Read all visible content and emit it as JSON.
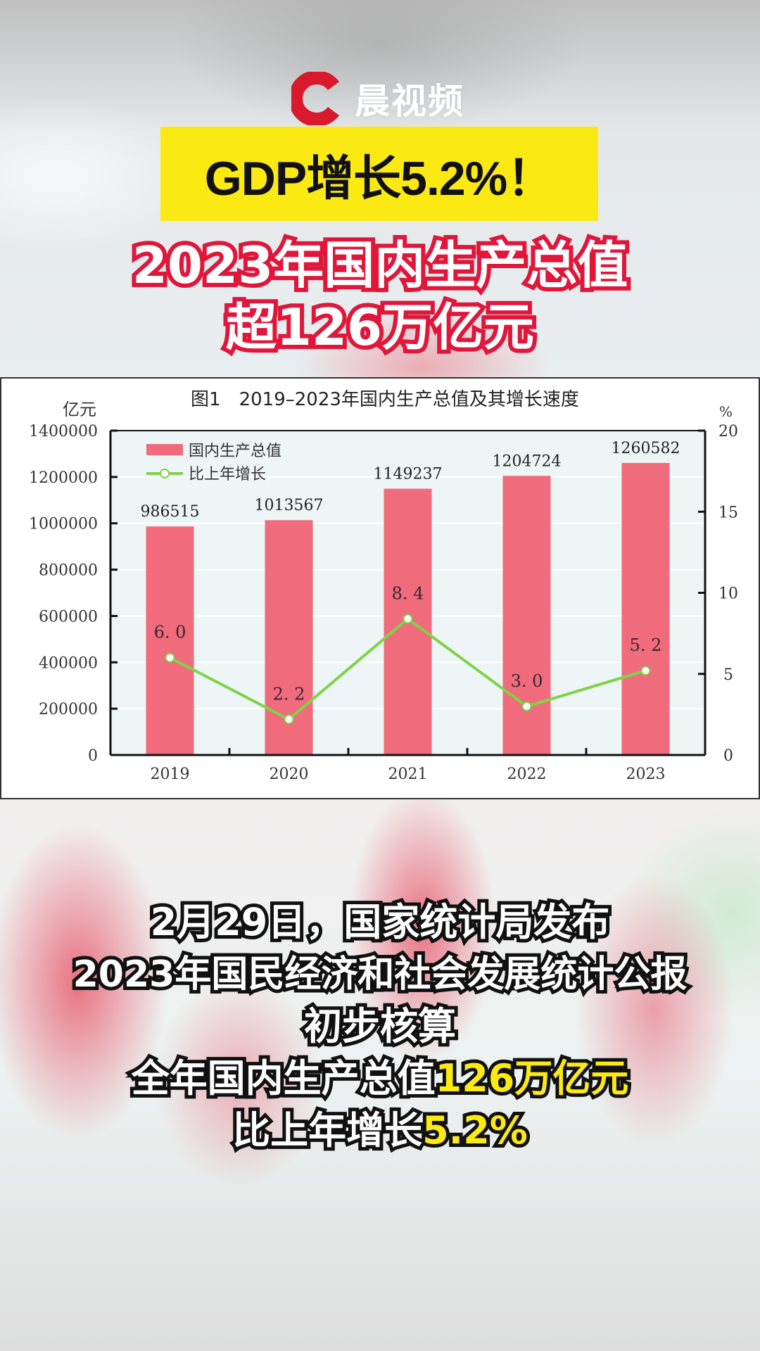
{
  "brand": {
    "logo_text": "晨视频",
    "logo_color": "#d9192c"
  },
  "headline": {
    "text": "GDP增长5.2%！",
    "bg_color": "#fbe914"
  },
  "sub_headline": {
    "line1": "2023年国内生产总值",
    "line2": "超126万亿元",
    "stroke_color": "#e0163a"
  },
  "chart_data": {
    "type": "bar+line",
    "title": "图1　2019–2023年国内生产总值及其增长速度",
    "categories": [
      "2019",
      "2020",
      "2021",
      "2022",
      "2023"
    ],
    "series": [
      {
        "name": "国内生产总值",
        "type": "bar",
        "axis": "left",
        "color": "#f06b7b",
        "values": [
          986515,
          1013567,
          1149237,
          1204724,
          1260582
        ],
        "labels": [
          "986515",
          "1013567",
          "1149237",
          "1204724",
          "1260582"
        ]
      },
      {
        "name": "比上年增长",
        "type": "line",
        "axis": "right",
        "color": "#7ed348",
        "values": [
          6.0,
          2.2,
          8.4,
          3.0,
          5.2
        ],
        "labels": [
          "6. 0",
          "2. 2",
          "8. 4",
          "3. 0",
          "5. 2"
        ]
      }
    ],
    "left_axis": {
      "unit": "亿元",
      "ylim": [
        0,
        1400000
      ],
      "ticks": [
        "0",
        "200000",
        "400000",
        "600000",
        "800000",
        "1000000",
        "1200000",
        "1400000"
      ]
    },
    "right_axis": {
      "unit": "%",
      "ylim": [
        0,
        20
      ],
      "ticks": [
        "0",
        "5",
        "10",
        "15",
        "20"
      ]
    },
    "legend_position": "top-left inside",
    "grid": true,
    "plot_bg": "#edf5f7"
  },
  "caption": {
    "line1": "2月29日，国家统计局发布",
    "line2": "2023年国民经济和社会发展统计公报",
    "line3": "初步核算",
    "line4_prefix": "全年国内生产总值",
    "line4_highlight": "126万亿元",
    "line5_prefix": "比上年增长",
    "line5_highlight": "5.2%",
    "highlight_color": "#fbe914"
  }
}
